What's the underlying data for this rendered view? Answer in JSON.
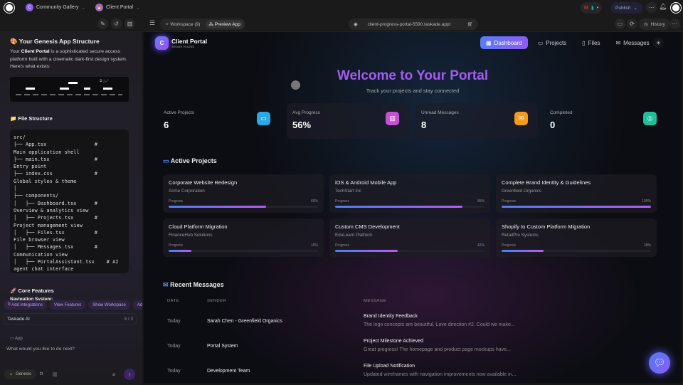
{
  "topbar": {
    "workspace": "Community Gallery",
    "workspace_initial": "C",
    "project": "Client Portal",
    "publish": "Publish"
  },
  "toolbar": {
    "workspace_tab": "Workspace (9)",
    "preview_tab": "Preview App",
    "url": "client-progress-portal-5590.taskade.app/",
    "history": "History"
  },
  "chat": {
    "title": "🎨 Your Genesis App Structure",
    "intro_pre": "Your ",
    "intro_bold": "Client Portal",
    "intro_post": " is a sophisticated secure access platform built with a cinematic dark-first design system. Here's what exists:",
    "file_heading": "📁 File Structure",
    "code_lines": [
      "src/",
      "├── App.tsx                # ",
      "Main application shell",
      "├── main.tsx               # ",
      "Entry point",
      "├── index.css              # ",
      "Global styles & theme",
      "│",
      "├── components/",
      "│   ├── Dashboard.tsx      # ",
      "Overview & analytics view",
      "│   ├── Projects.tsx       # ",
      "Project management view",
      "│   ├── Files.tsx          # ",
      "File browser view",
      "│   ├── Messages.tsx       # ",
      "Communication view",
      "│   ├── PortalAssistant.tsx    # AI",
      "agent chat interface"
    ],
    "features_heading": "🚀 Core Features",
    "nav_system": "Navigation System:",
    "chips": [
      "Add Integrations",
      "View Features",
      "Show Workspace",
      "Ad"
    ],
    "agent": "Taskade AI",
    "count": "3 / 3",
    "context": "App",
    "placeholder": "What would you like to do next?",
    "mode": "Genesis"
  },
  "portal": {
    "brand": "Client Portal",
    "brand_sub": "Secure Access",
    "brand_initial": "C",
    "nav": [
      "Dashboard",
      "Projects",
      "Files",
      "Messages"
    ],
    "welcome": "Welcome to Your Portal",
    "tagline": "Track your projects and stay connected",
    "stats": [
      {
        "label": "Active Projects",
        "value": "6",
        "color": "#2aa8e8",
        "icon": "folder-icon"
      },
      {
        "label": "Avg Progress",
        "value": "56%",
        "color": "#c84fd8",
        "icon": "chart-icon"
      },
      {
        "label": "Unread Messages",
        "value": "8",
        "color": "#f59a1b",
        "icon": "mail-icon"
      },
      {
        "label": "Completed",
        "value": "0",
        "color": "#1fbf9a",
        "icon": "check-circle-icon"
      }
    ],
    "projects_heading": "Active Projects",
    "progress_label": "Progress",
    "projects": [
      {
        "title": "Corporate Website Redesign",
        "client": "Acme Corporation",
        "progress": 65,
        "progress_text": "65%"
      },
      {
        "title": "iOS & Android Mobile App",
        "client": "TechStart Inc",
        "progress": 85,
        "progress_text": "85%"
      },
      {
        "title": "Complete Brand Identity & Guidelines",
        "client": "Greenfield Organics",
        "progress": 100,
        "progress_text": "100%"
      },
      {
        "title": "Cloud Platform Migration",
        "client": "FinanceHub Solutions",
        "progress": 15,
        "progress_text": "15%"
      },
      {
        "title": "Custom CMS Development",
        "client": "EduLearn Platform",
        "progress": 42,
        "progress_text": "42%"
      },
      {
        "title": "Shopify to Custom Platform Migration",
        "client": "RetailPro Systems",
        "progress": 28,
        "progress_text": "28%"
      }
    ],
    "messages_heading": "Recent Messages",
    "columns": [
      "DATE",
      "SENDER",
      "MESSAGE"
    ],
    "messages": [
      {
        "date": "Today",
        "sender": "Sarah Chen - Greenfield Organics",
        "subject": "Brand Identity Feedback",
        "preview": "The logo concepts are beautiful. Love direction #2. Could we make..."
      },
      {
        "date": "Today",
        "sender": "Portal System",
        "subject": "Project Milestone Achieved",
        "preview": "Great progress! The homepage and product page mockups have..."
      },
      {
        "date": "Today",
        "sender": "Development Team",
        "subject": "File Upload Notification",
        "preview": "Updated wireframes with navigation improvements now available in..."
      }
    ]
  }
}
